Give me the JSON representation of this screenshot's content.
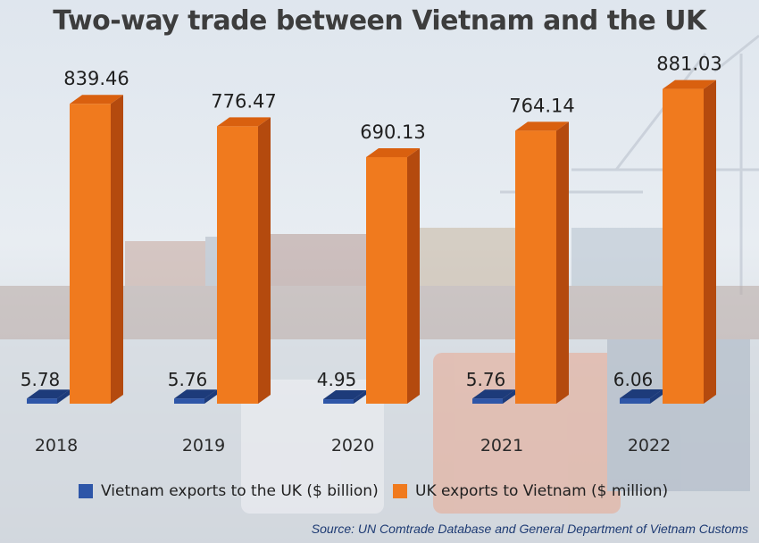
{
  "title": "Two-way trade between Vietnam and the UK",
  "source": "Source: UN Comtrade Database and General Department of Vietnam Customs",
  "colors": {
    "vietnam_front": "#2e56a8",
    "vietnam_side": "#1d3b7a",
    "uk_front": "#f07a1e",
    "uk_side": "#b44a0e",
    "uk_top": "#d9600f"
  },
  "legend": [
    {
      "label": "Vietnam exports to the UK ($ billion)",
      "color": "#2e56a8"
    },
    {
      "label": "UK exports to Vietnam ($ million)",
      "color": "#f07a1e"
    }
  ],
  "chart_data": {
    "type": "bar",
    "categories": [
      "2018",
      "2019",
      "2020",
      "2021",
      "2022"
    ],
    "series": [
      {
        "name": "Vietnam exports to the UK ($ billion)",
        "values": [
          5.78,
          5.76,
          4.95,
          5.76,
          6.06
        ],
        "labels": [
          "5.78",
          "5.76",
          "4.95",
          "5.76",
          "6.06"
        ]
      },
      {
        "name": "UK exports to Vietnam ($ million)",
        "values": [
          839.46,
          776.47,
          690.13,
          764.14,
          881.03
        ],
        "labels": [
          "839.46",
          "776.47",
          "690.13",
          "764.14",
          "881.03"
        ]
      }
    ],
    "ylim": [
      0,
      1000
    ],
    "grid": false,
    "legend_position": "bottom"
  }
}
